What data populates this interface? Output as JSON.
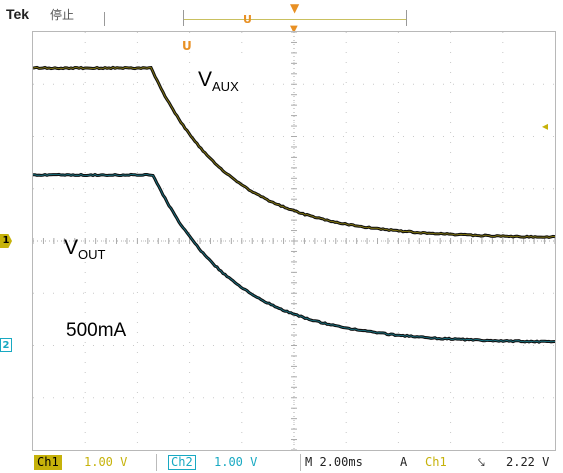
{
  "header": {
    "brand": "Tek",
    "state": "停止",
    "trigger_marker": "U",
    "time_marker": "T"
  },
  "plot": {
    "vaux_main": "V",
    "vaux_sub": "AUX",
    "vout_main": "V",
    "vout_sub": "OUT",
    "load_current": "500mA",
    "ch1_marker": "1",
    "ch2_marker": "2",
    "trigger_marker": "U"
  },
  "status_bar": {
    "ch1_label": "Ch1",
    "ch1_scale": "1.00 V",
    "ch2_label": "Ch2",
    "ch2_scale": "1.00 V",
    "timebase": "M 2.00ms",
    "acq_mode": "A",
    "trigger_source": "Ch1",
    "trigger_slope": "⤥",
    "trigger_level": "2.22 V"
  },
  "colors": {
    "ch1": "#c6b20a",
    "ch2": "#18a9c2",
    "trigger": "#e89024",
    "trace": "#111111",
    "grid": "#c8c8c8"
  }
}
